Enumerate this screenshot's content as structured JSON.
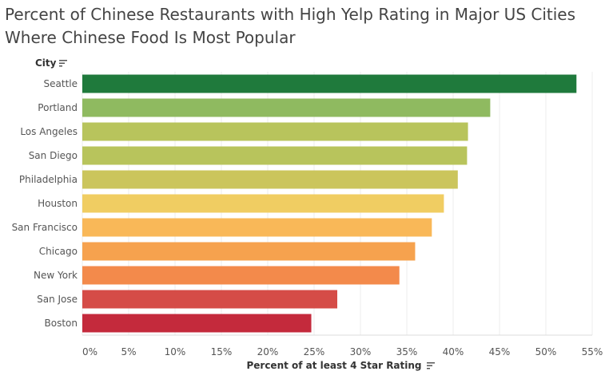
{
  "title": "Percent of Chinese Restaurants with High Yelp Rating in Major US Cities Where Chinese Food Is Most Popular",
  "y_header": "City",
  "x_title": "Percent of at least 4 Star Rating",
  "icons": {
    "sort": "sort-descending-icon"
  },
  "chart_data": {
    "type": "bar",
    "orientation": "horizontal",
    "categories": [
      "Seattle",
      "Portland",
      "Los Angeles",
      "San Diego",
      "Philadelphia",
      "Houston",
      "San Francisco",
      "Chicago",
      "New York",
      "San Jose",
      "Boston"
    ],
    "values": [
      53.3,
      44.0,
      41.6,
      41.5,
      40.5,
      39.0,
      37.7,
      35.9,
      34.2,
      27.5,
      24.7
    ],
    "colors": [
      "#1f7a3c",
      "#8fba60",
      "#b8c45c",
      "#b8c45c",
      "#cbc55c",
      "#f0cd62",
      "#f9b858",
      "#f6a24e",
      "#f38a4b",
      "#d54c47",
      "#c42a3c"
    ],
    "xlabel": "Percent of at least 4 Star Rating",
    "ylabel": "City",
    "xlim": [
      0,
      55
    ],
    "xticks": [
      0,
      5,
      10,
      15,
      20,
      25,
      30,
      35,
      40,
      45,
      50,
      55
    ],
    "xtick_labels": [
      "0%",
      "5%",
      "10%",
      "15%",
      "20%",
      "25%",
      "30%",
      "35%",
      "40%",
      "45%",
      "50%",
      "55%"
    ],
    "grid": true
  }
}
